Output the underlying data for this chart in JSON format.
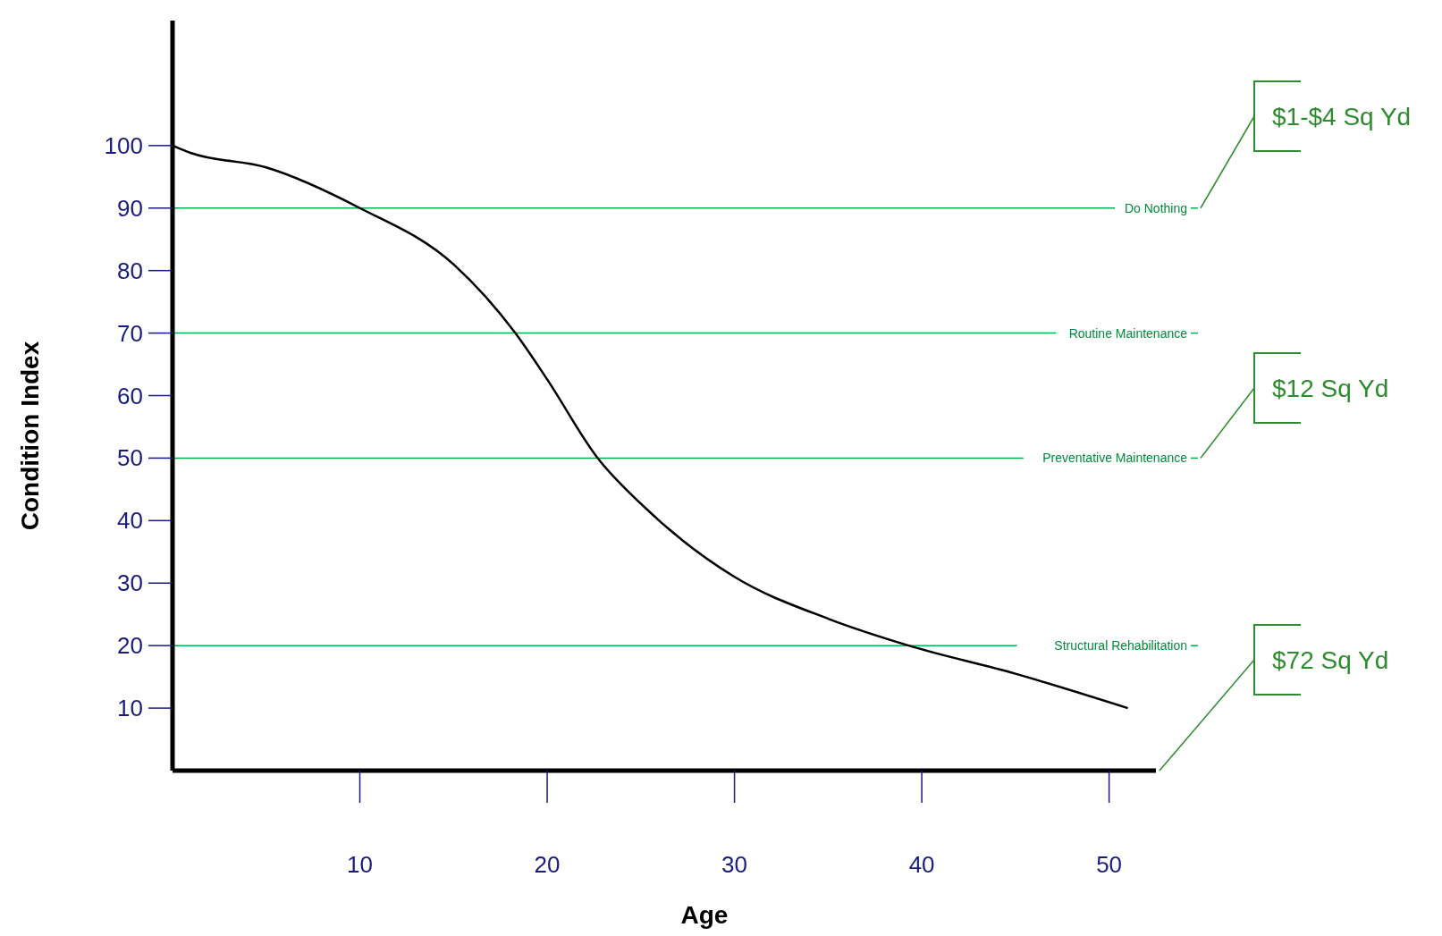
{
  "chart_data": {
    "type": "line",
    "xlabel": "Age",
    "ylabel": "Condition Index",
    "x": [
      0,
      1,
      5,
      10,
      15,
      18.3,
      20,
      22.7,
      25,
      30,
      35,
      39.3,
      45,
      51
    ],
    "series": [
      {
        "color": "#000000",
        "values": [
          100,
          98.8,
          96.5,
          90,
          81,
          70,
          62.6,
          50,
          42.7,
          31,
          24.3,
          20,
          15.5,
          10
        ]
      }
    ],
    "xlim": [
      0,
      52.5
    ],
    "ylim": [
      0,
      120
    ],
    "xticks": [
      10,
      20,
      30,
      40,
      50
    ],
    "yticks": [
      10,
      20,
      30,
      40,
      50,
      60,
      70,
      80,
      90,
      100
    ],
    "grid": false,
    "marker": "none",
    "line_style": "solid",
    "ref_lines": [
      {
        "axis": "y",
        "value": 90,
        "label": "Do Nothing",
        "color": "#00b050"
      },
      {
        "axis": "y",
        "value": 70,
        "label": "Routine Maintenance",
        "color": "#00b050"
      },
      {
        "axis": "y",
        "value": 50,
        "label": "Preventative Maintenance",
        "color": "#00b050"
      },
      {
        "axis": "y",
        "value": 20,
        "label": "Structural Rehabilitation",
        "color": "#00b050"
      }
    ],
    "annotations": [
      "$1-$4 Sq Yd",
      "$12 Sq Yd",
      "$72 Sq Yd"
    ]
  }
}
